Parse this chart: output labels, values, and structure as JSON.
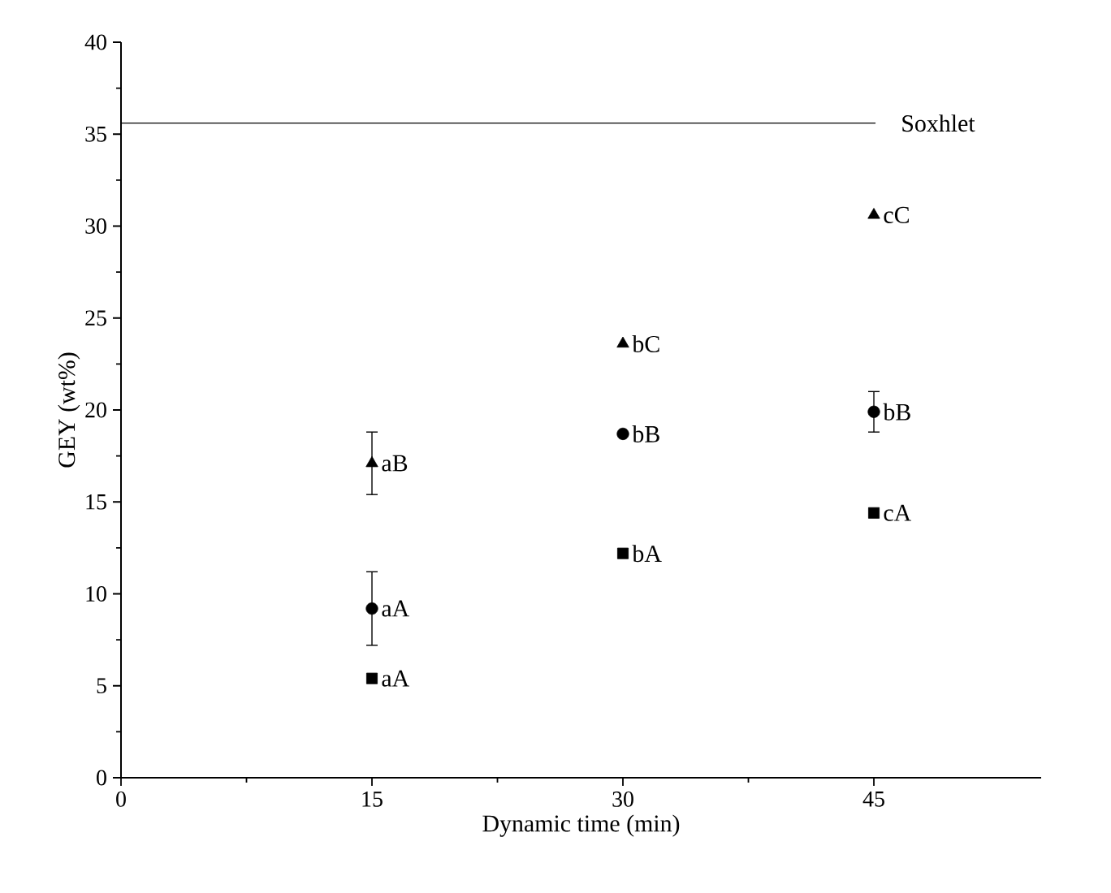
{
  "chart_data": {
    "type": "scatter",
    "xlabel": "Dynamic time (min)",
    "ylabel": "GEY (wt%)",
    "x": [
      15,
      30,
      45
    ],
    "xlim": [
      0,
      55
    ],
    "xticks": [
      0,
      15,
      30,
      45
    ],
    "ylim": [
      0,
      40
    ],
    "yticks": [
      0,
      5,
      10,
      15,
      20,
      25,
      30,
      35,
      40
    ],
    "grid": false,
    "series": [
      {
        "color": "#000000",
        "marker": "square",
        "values": [
          5.4,
          12.2,
          14.4
        ],
        "value_labels": [
          "aA",
          "bA",
          "cA"
        ]
      },
      {
        "color": "#000000",
        "marker": "circle",
        "values": [
          9.2,
          18.7,
          19.9
        ],
        "errors": [
          2.0,
          null,
          1.1
        ],
        "value_labels": [
          "aA",
          "bB",
          "bB"
        ]
      },
      {
        "color": "#000000",
        "marker": "triangle",
        "values": [
          17.1,
          23.6,
          30.6
        ],
        "errors": [
          1.7,
          null,
          null
        ],
        "value_labels": [
          "aB",
          "bC",
          "cC"
        ]
      }
    ],
    "ref_lines": [
      {
        "axis": "y",
        "value": 35.6,
        "label": "Soxhlet",
        "color": "#000000",
        "line_style": "solid"
      }
    ]
  }
}
